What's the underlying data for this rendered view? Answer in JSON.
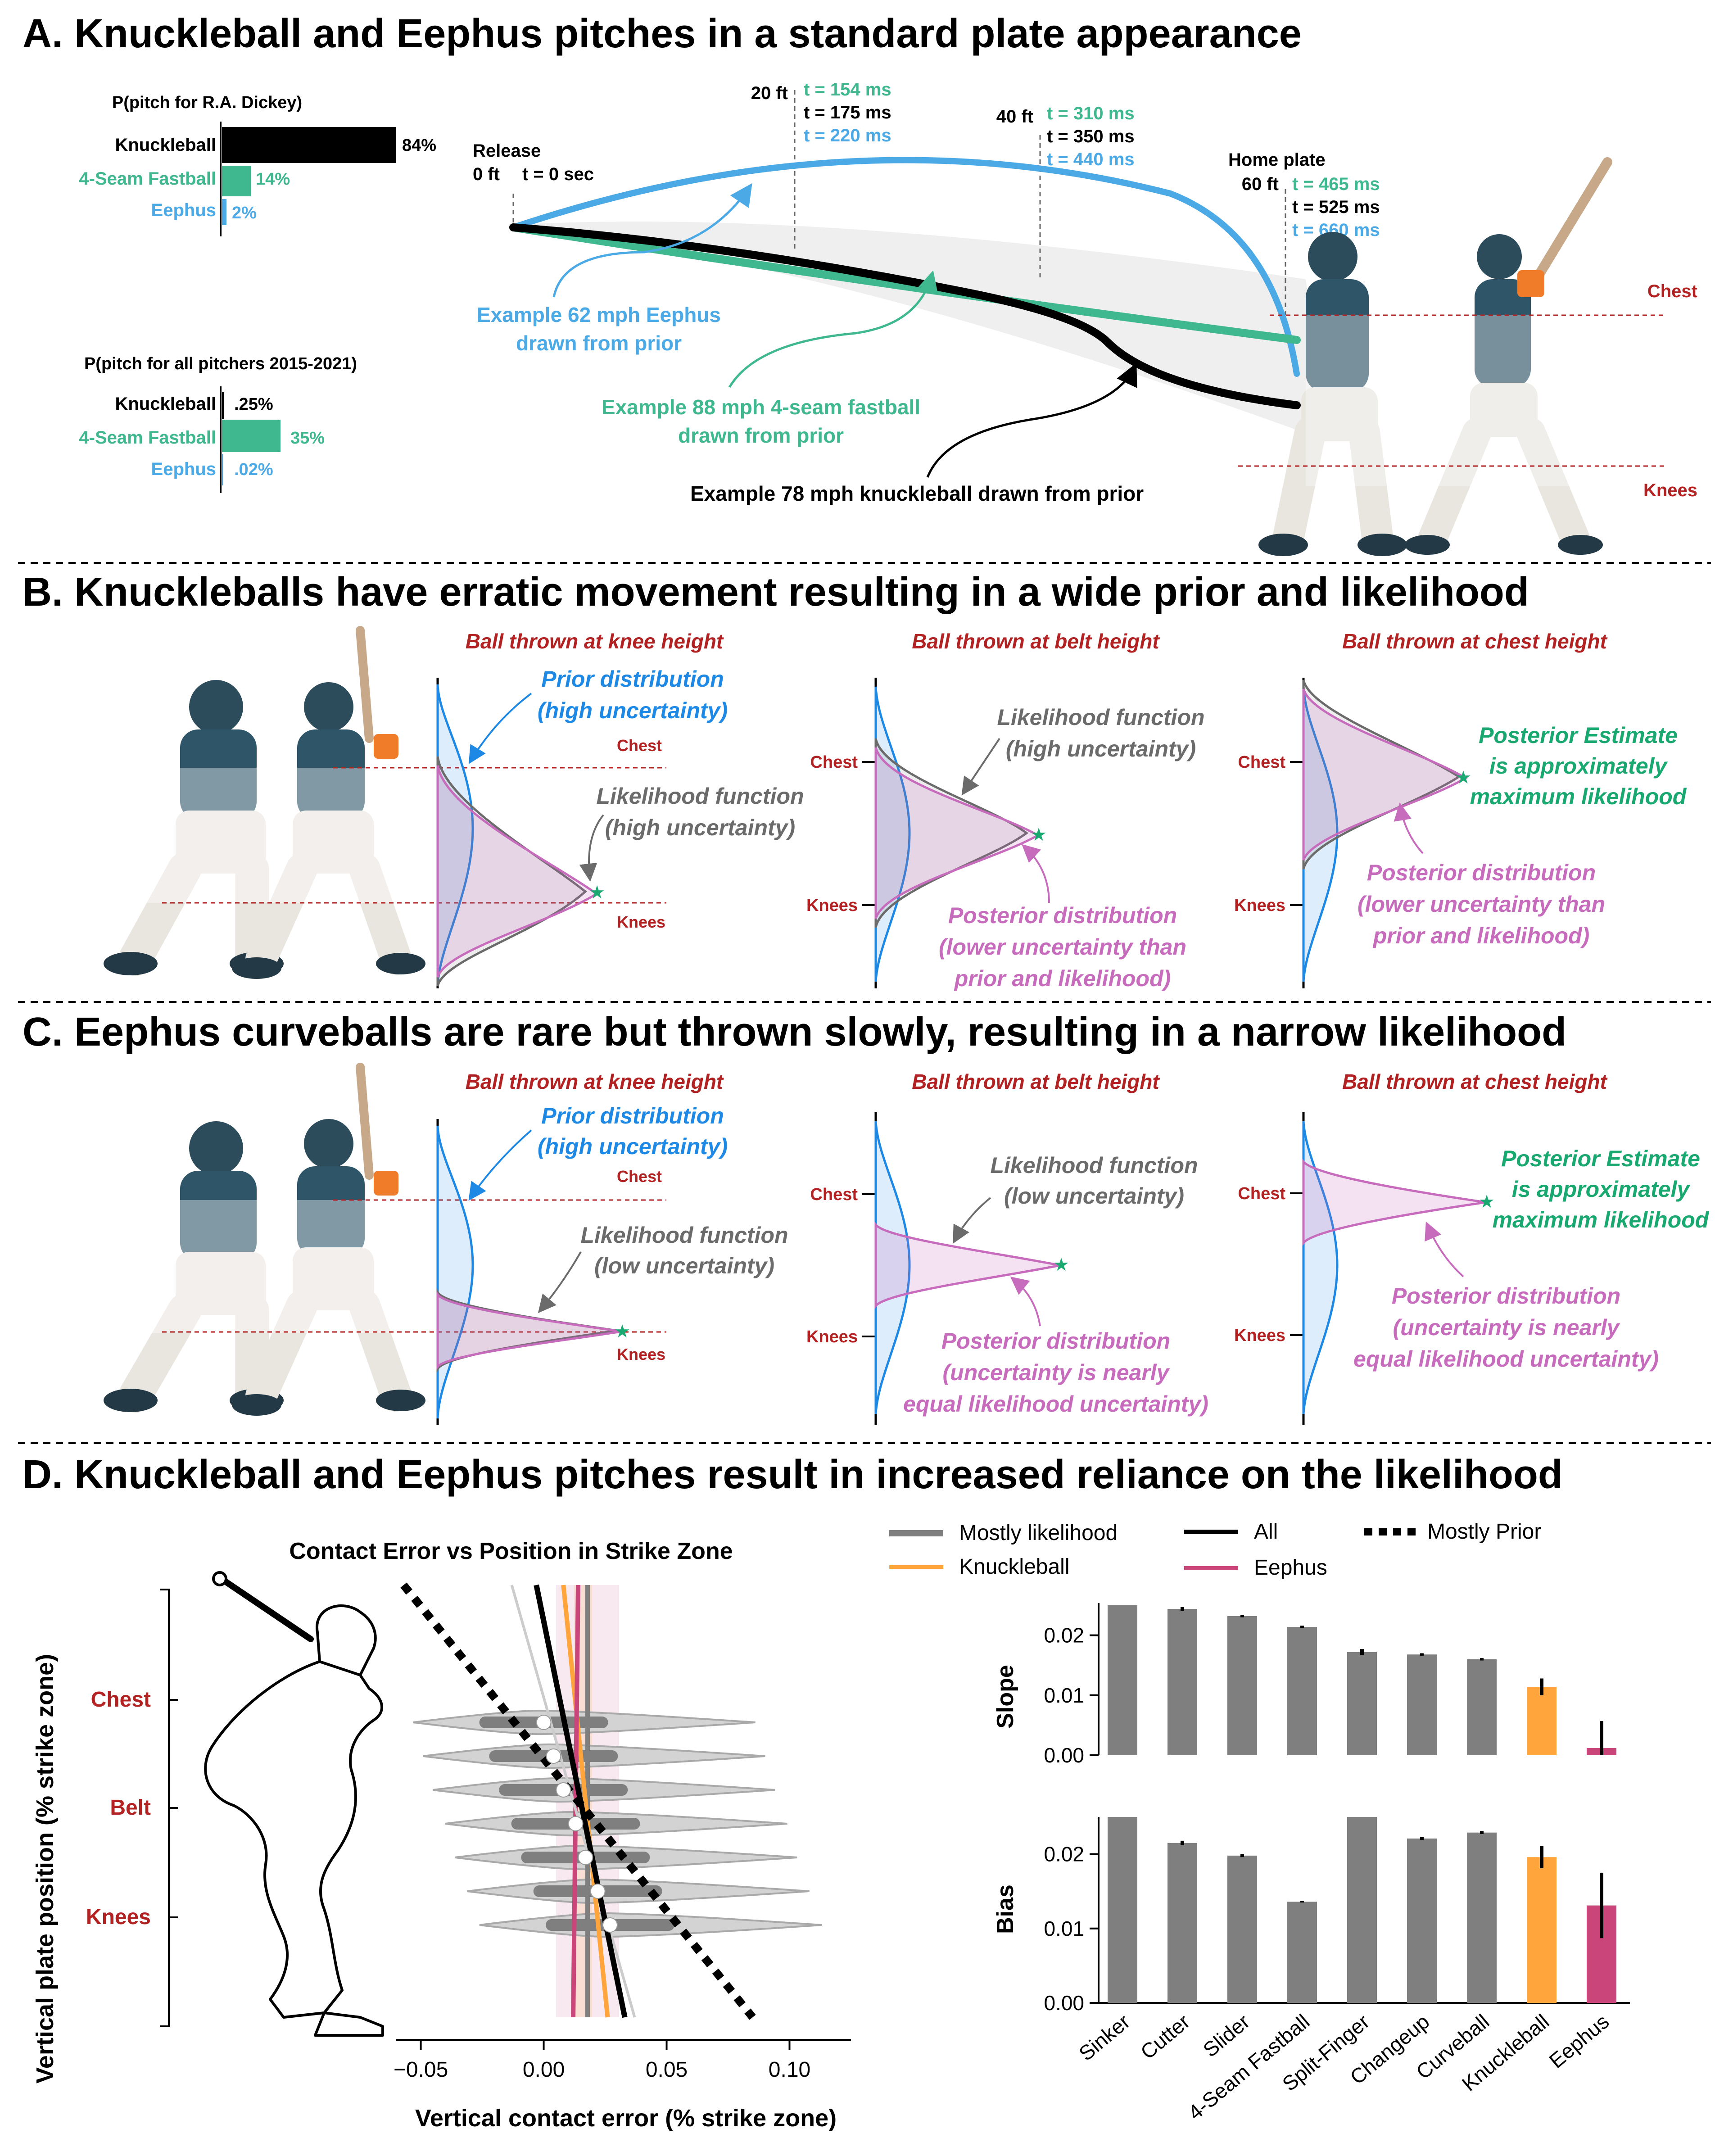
{
  "colors": {
    "knuckleball": "#000000",
    "fastball": "#3fb88f",
    "eephus": "#4ba9e6",
    "prior_blue": "#1e88e5",
    "likelihood_grey": "#6b6b6b",
    "posterior_pink": "#c76bbd",
    "marker_red": "#b22222",
    "green_text": "#18a870",
    "bar_grey": "#7f7f7f",
    "bar_knuckle": "#ffa53b",
    "bar_eephus": "#c9457a"
  },
  "panelA": {
    "title": "A. Knuckleball and Eephus pitches in a standard plate appearance",
    "dickey": {
      "title": "P(pitch for R.A. Dickey)",
      "bars": [
        {
          "label": "Knuckleball",
          "value": 84,
          "display": "84%",
          "color": "#000000"
        },
        {
          "label": "4-Seam Fastball",
          "value": 14,
          "display": "14%",
          "color": "#3fb88f"
        },
        {
          "label": "Eephus",
          "value": 2,
          "display": "2%",
          "color": "#4ba9e6"
        }
      ]
    },
    "all": {
      "title": "P(pitch for all pitchers 2015-2021)",
      "bars": [
        {
          "label": "Knuckleball",
          "value": 0.25,
          "display": ".25%",
          "color": "#000000"
        },
        {
          "label": "4-Seam Fastball",
          "value": 35,
          "display": "35%",
          "color": "#3fb88f"
        },
        {
          "label": "Eephus",
          "value": 0.02,
          "display": ".02%",
          "color": "#4ba9e6"
        }
      ]
    },
    "release": {
      "label": "Release",
      "ft": "0 ft",
      "t": "t = 0 sec"
    },
    "mark20": {
      "ft": "20 ft",
      "t1": "t = 154 ms",
      "t2": "t = 175 ms",
      "t3": "t = 220 ms"
    },
    "mark40": {
      "ft": "40 ft",
      "t1": "t = 310 ms",
      "t2": "t = 350 ms",
      "t3": "t = 440 ms"
    },
    "home": {
      "label": "Home plate",
      "ft": "60 ft",
      "t1": "t = 465 ms",
      "t2": "t = 525 ms",
      "t3": "t = 660 ms"
    },
    "eephus_note": [
      "Example 62 mph Eephus",
      "drawn from prior"
    ],
    "fastball_note": [
      "Example 88 mph 4-seam fastball",
      "drawn from prior"
    ],
    "knuckle_note": "Example 78 mph knuckleball drawn from prior",
    "chest": "Chest",
    "knees": "Knees"
  },
  "panelB": {
    "title": "B. Knuckleballs have erratic movement resulting in a wide prior and likelihood",
    "sub1": "Ball thrown at knee height",
    "sub2": "Ball thrown at belt height",
    "sub3": "Ball thrown at chest height",
    "prior": [
      "Prior distribution",
      "(high uncertainty)"
    ],
    "likelihood": [
      "Likelihood function",
      "(high uncertainty)"
    ],
    "posterior": [
      "Posterior distribution",
      "(lower uncertainty than",
      "prior and likelihood)"
    ],
    "estimate": [
      "Posterior Estimate",
      "is approximately",
      "maximum likelihood"
    ],
    "chest": "Chest",
    "knees": "Knees"
  },
  "panelC": {
    "title": "C. Eephus curveballs are rare but thrown slowly, resulting in a narrow likelihood",
    "sub1": "Ball thrown at knee height",
    "sub2": "Ball thrown at belt height",
    "sub3": "Ball thrown at chest height",
    "prior": [
      "Prior distribution",
      "(high uncertainty)"
    ],
    "likelihood": [
      "Likelihood function",
      "(low uncertainty)"
    ],
    "posterior": [
      "Posterior distribution",
      "(uncertainty is nearly",
      "equal likelihood uncertainty)"
    ],
    "estimate": [
      "Posterior Estimate",
      "is approximately",
      "maximum likelihood"
    ],
    "chest": "Chest",
    "knees": "Knees"
  },
  "panelD": {
    "title": "D. Knuckleball and Eephus pitches result in increased reliance on the likelihood",
    "plot_title": "Contact Error vs Position in Strike Zone",
    "ylabel": "Vertical plate position (% strike zone)",
    "xlabel": "Vertical contact error (% strike zone)",
    "ytick_labels": [
      "Chest",
      "Belt",
      "Knees"
    ],
    "xtick_labels": [
      "−0.05",
      "0.00",
      "0.05",
      "0.10"
    ],
    "legend": [
      {
        "label": "Mostly likelihood",
        "style": "solid",
        "color": "#7f7f7f"
      },
      {
        "label": "All",
        "style": "solid",
        "color": "#000000"
      },
      {
        "label": "Mostly Prior",
        "style": "dotted",
        "color": "#000000"
      },
      {
        "label": "Knuckleball",
        "style": "solid",
        "color": "#ffa53b"
      },
      {
        "label": "Eephus",
        "style": "solid",
        "color": "#c9457a"
      }
    ]
  },
  "chart_data": [
    {
      "type": "bar",
      "title": "Slope",
      "ylabel": "Slope",
      "categories": [
        "Sinker",
        "Cutter",
        "Slider",
        "4-Seam Fastball",
        "Split-Finger",
        "Changeup",
        "Curveball",
        "Knuckleball",
        "Eephus"
      ],
      "values": [
        0.025,
        0.0244,
        0.0232,
        0.0214,
        0.0172,
        0.0168,
        0.016,
        0.0114,
        0.0012
      ],
      "errors": [
        0.0,
        0.0003,
        0.0002,
        0.0002,
        0.0005,
        0.0002,
        0.0002,
        0.0014,
        0.0045
      ],
      "ylim": [
        0,
        0.025
      ],
      "yticks": [
        "0.00",
        "0.01",
        "0.02"
      ]
    },
    {
      "type": "bar",
      "title": "Bias",
      "ylabel": "Bias",
      "categories": [
        "Sinker",
        "Cutter",
        "Slider",
        "4-Seam Fastball",
        "Split-Finger",
        "Changeup",
        "Curveball",
        "Knuckleball",
        "Eephus"
      ],
      "values": [
        0.025,
        0.0215,
        0.0198,
        0.0136,
        0.025,
        0.0221,
        0.0229,
        0.0196,
        0.0131
      ],
      "errors": [
        0.0,
        0.0003,
        0.0002,
        0.0001,
        0.0,
        0.0002,
        0.0002,
        0.0015,
        0.0044
      ],
      "ylim": [
        0,
        0.025
      ],
      "yticks": [
        "0.00",
        "0.01",
        "0.02"
      ]
    },
    {
      "type": "scatter",
      "title": "Contact Error vs Position in Strike Zone",
      "xlabel": "Vertical contact error (% strike zone)",
      "ylabel": "Vertical plate position (% strike zone)",
      "xlim": [
        -0.06,
        0.125
      ],
      "x": [
        0.0,
        0.004,
        0.008,
        0.013,
        0.017,
        0.022,
        0.027
      ],
      "y_index": [
        1,
        2,
        3,
        4,
        5,
        6,
        7
      ],
      "lines": [
        {
          "name": "All",
          "x_top": -0.003,
          "x_bottom": 0.033
        },
        {
          "name": "Mostly Prior",
          "x_top": -0.057,
          "x_bottom": 0.085
        },
        {
          "name": "Mostly likelihood",
          "x_top": 0.011,
          "x_bottom": 0.011
        },
        {
          "name": "Knuckleball",
          "x_top": 0.008,
          "x_bottom": 0.026
        },
        {
          "name": "Eephus",
          "x_top": 0.014,
          "x_bottom": 0.012
        }
      ]
    }
  ]
}
